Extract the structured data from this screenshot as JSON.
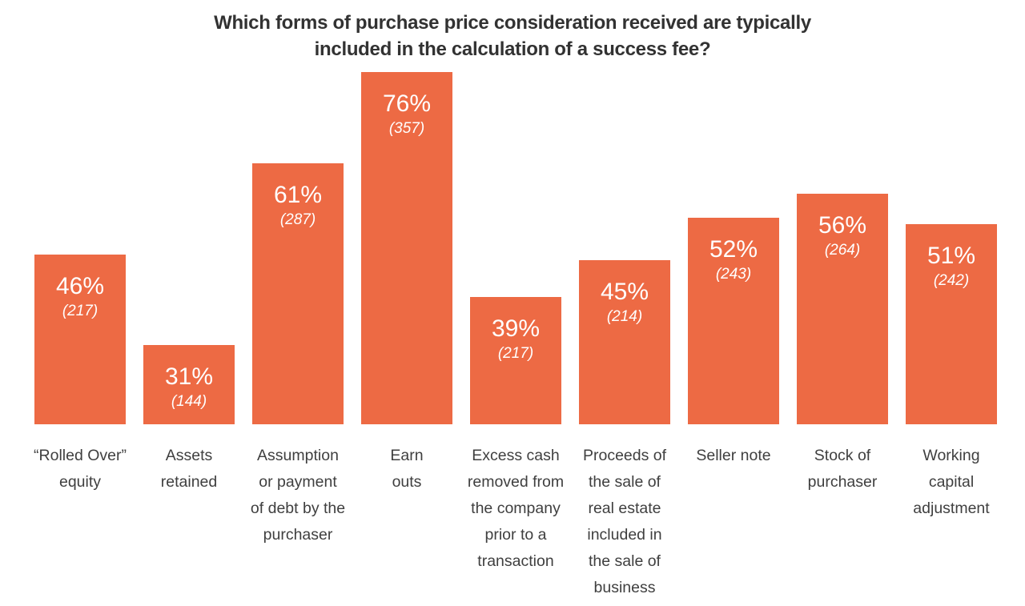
{
  "page": {
    "background": "#FFFFFF"
  },
  "title": {
    "line1": "Which forms of purchase price consideration received are typically",
    "line2": "included in the calculation of a success fee?",
    "color": "#323232"
  },
  "chart_data": {
    "type": "bar",
    "title": "Which forms of purchase price consideration received are typically included in the calculation of a success fee?",
    "categories": [
      "“Rolled Over” equity",
      "Assets retained",
      "Assumption or payment of debt by the purchaser",
      "Earn outs",
      "Excess cash removed from the company prior to a transaction",
      "Proceeds of the sale of real estate included in the sale of business",
      "Seller note",
      "Stock of purchaser",
      "Working capital adjustment"
    ],
    "category_lines": [
      [
        "“Rolled Over”",
        "equity"
      ],
      [
        "Assets",
        "retained"
      ],
      [
        "Assumption",
        "or payment",
        "of debt by the",
        "purchaser"
      ],
      [
        "Earn",
        "outs"
      ],
      [
        "Excess cash",
        "removed from",
        "the company",
        "prior to a",
        "transaction"
      ],
      [
        "Proceeds of",
        "the sale of",
        "real estate",
        "included in",
        "the sale of",
        "business"
      ],
      [
        "Seller note"
      ],
      [
        "Stock of",
        "purchaser"
      ],
      [
        "Working",
        "capital",
        "adjustment"
      ]
    ],
    "values": [
      46,
      31,
      61,
      76,
      39,
      45,
      52,
      56,
      51
    ],
    "value_labels": [
      "46%",
      "31%",
      "61%",
      "76%",
      "39%",
      "45%",
      "52%",
      "56%",
      "51%"
    ],
    "counts": [
      217,
      144,
      287,
      357,
      217,
      214,
      243,
      264,
      242
    ],
    "count_labels": [
      "(217)",
      "(144)",
      "(287)",
      "(357)",
      "(217)",
      "(214)",
      "(243)",
      "(264)",
      "(242)"
    ],
    "unit": "%",
    "xlabel": "",
    "ylabel": "",
    "ylim": [
      18,
      77.6
    ],
    "baseline_note": "bar heights in source image are not zero-based; baseline corresponds to ~18%",
    "grid": false,
    "legend": false,
    "axes_hidden": true,
    "bar_color": "#ED6A44",
    "value_text_color": "#FFFFFF",
    "label_text_color": "#3F3F3F"
  }
}
